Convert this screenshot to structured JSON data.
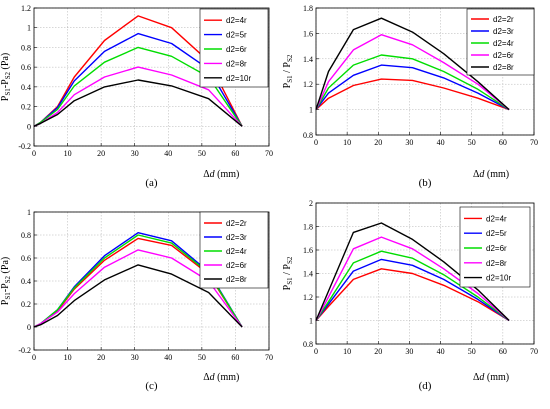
{
  "chart_data": [
    {
      "type": "line",
      "panel_label": "(a)",
      "xlabel_prefix": "Δ",
      "xlabel_var": "d",
      "xlabel_unit": " (mm)",
      "ylabel": "P",
      "ylabel_sub1": "S1",
      "ylabel_mid": "-P",
      "ylabel_sub2": "S2",
      "ylabel_unit": "  (Pa)",
      "xlim": [
        0,
        70
      ],
      "ylim": [
        -0.2,
        1.2
      ],
      "xticks": [
        "0",
        "10",
        "20",
        "30",
        "40",
        "50",
        "60",
        "70"
      ],
      "yticks": [
        "-0.2",
        "0",
        "0.2",
        "0.4",
        "0.6",
        "0.8",
        "1",
        "1.2"
      ],
      "grid": true,
      "legend_position": "top-right",
      "x": [
        0,
        2,
        7,
        12,
        21,
        31,
        41,
        52,
        62
      ],
      "series": [
        {
          "name": "d2=4r",
          "color": "#ff0000",
          "values": [
            0,
            0.04,
            0.2,
            0.5,
            0.87,
            1.12,
            1.0,
            0.66,
            0
          ]
        },
        {
          "name": "d2=5r",
          "color": "#0000ff",
          "values": [
            0,
            0.04,
            0.19,
            0.46,
            0.76,
            0.94,
            0.84,
            0.58,
            0
          ]
        },
        {
          "name": "d2=6r",
          "color": "#00dd00",
          "values": [
            0,
            0.04,
            0.17,
            0.41,
            0.65,
            0.8,
            0.71,
            0.5,
            0
          ]
        },
        {
          "name": "d2=8r",
          "color": "#ff00ff",
          "values": [
            0,
            0.03,
            0.14,
            0.32,
            0.5,
            0.6,
            0.52,
            0.37,
            0
          ]
        },
        {
          "name": "d2=10r",
          "color": "#000000",
          "values": [
            0,
            0.03,
            0.12,
            0.26,
            0.4,
            0.47,
            0.41,
            0.28,
            0
          ]
        }
      ]
    },
    {
      "type": "line",
      "panel_label": "(b)",
      "xlabel_prefix": "Δ",
      "xlabel_var": "d",
      "xlabel_unit": " (mm)",
      "ylabel": "P",
      "ylabel_sub1": "S1",
      "ylabel_mid": " / P",
      "ylabel_sub2": "S2",
      "ylabel_unit": "",
      "xlim": [
        0,
        70
      ],
      "ylim": [
        0.8,
        1.8
      ],
      "xticks": [
        "0",
        "10",
        "20",
        "30",
        "40",
        "50",
        "60",
        "70"
      ],
      "yticks": [
        "0.8",
        "1",
        "1.2",
        "1.4",
        "1.6",
        "1.8"
      ],
      "grid": true,
      "legend_position": "top-right",
      "x": [
        0,
        4,
        12,
        21,
        31,
        41,
        52,
        62
      ],
      "series": [
        {
          "name": "d2=2r",
          "color": "#ff0000",
          "values": [
            1.0,
            1.09,
            1.19,
            1.24,
            1.23,
            1.17,
            1.09,
            1.0
          ]
        },
        {
          "name": "d2=3r",
          "color": "#0000ff",
          "values": [
            1.0,
            1.13,
            1.27,
            1.35,
            1.33,
            1.25,
            1.13,
            1.0
          ]
        },
        {
          "name": "d2=4r",
          "color": "#00dd00",
          "values": [
            1.0,
            1.17,
            1.35,
            1.43,
            1.4,
            1.3,
            1.16,
            1.0
          ]
        },
        {
          "name": "d2=6r",
          "color": "#ff00ff",
          "values": [
            1.0,
            1.22,
            1.47,
            1.59,
            1.51,
            1.37,
            1.2,
            1.0
          ]
        },
        {
          "name": "d2=8r",
          "color": "#000000",
          "values": [
            1.0,
            1.3,
            1.63,
            1.72,
            1.61,
            1.44,
            1.22,
            1.0
          ]
        }
      ]
    },
    {
      "type": "line",
      "panel_label": "(c)",
      "xlabel_prefix": "Δ",
      "xlabel_var": "d",
      "xlabel_unit": " (mm)",
      "ylabel": "P",
      "ylabel_sub1": "S1",
      "ylabel_mid": "-P",
      "ylabel_sub2": "S2",
      "ylabel_unit": "  (Pa)",
      "xlim": [
        0,
        70
      ],
      "ylim": [
        -0.2,
        1.0
      ],
      "xticks": [
        "0",
        "10",
        "20",
        "30",
        "40",
        "50",
        "60",
        "70"
      ],
      "yticks": [
        "-0.2",
        "0",
        "0.2",
        "0.4",
        "0.6",
        "0.8",
        "1"
      ],
      "grid": true,
      "legend_position": "top-right",
      "x": [
        0,
        2,
        7,
        12,
        21,
        31,
        41,
        52,
        62
      ],
      "series": [
        {
          "name": "d2=2r",
          "color": "#ff0000",
          "values": [
            0,
            0.03,
            0.14,
            0.33,
            0.58,
            0.77,
            0.71,
            0.46,
            0
          ]
        },
        {
          "name": "d2=3r",
          "color": "#0000ff",
          "values": [
            0,
            0.03,
            0.15,
            0.35,
            0.62,
            0.82,
            0.75,
            0.48,
            0
          ]
        },
        {
          "name": "d2=4r",
          "color": "#00dd00",
          "values": [
            0,
            0.03,
            0.15,
            0.34,
            0.6,
            0.8,
            0.73,
            0.47,
            0
          ]
        },
        {
          "name": "d2=6r",
          "color": "#ff00ff",
          "values": [
            0,
            0.03,
            0.13,
            0.29,
            0.52,
            0.67,
            0.6,
            0.4,
            0
          ]
        },
        {
          "name": "d2=8r",
          "color": "#000000",
          "values": [
            0,
            0.02,
            0.1,
            0.23,
            0.41,
            0.54,
            0.46,
            0.3,
            0
          ]
        }
      ]
    },
    {
      "type": "line",
      "panel_label": "(d)",
      "xlabel_prefix": "Δ",
      "xlabel_var": "d",
      "xlabel_unit": " (mm)",
      "ylabel": "P",
      "ylabel_sub1": "S1",
      "ylabel_mid": " / P",
      "ylabel_sub2": "S2",
      "ylabel_unit": "",
      "xlim": [
        0,
        70
      ],
      "ylim": [
        0.8,
        2.0
      ],
      "xticks": [
        "0",
        "10",
        "20",
        "30",
        "40",
        "50",
        "60",
        "70"
      ],
      "yticks": [
        "0.8",
        "1",
        "1.2",
        "1.4",
        "1.6",
        "1.8",
        "2"
      ],
      "grid": true,
      "legend_position": "top-right",
      "x": [
        0,
        4,
        12,
        21,
        31,
        41,
        52,
        62
      ],
      "series": [
        {
          "name": "d2=4r",
          "color": "#ff0000",
          "values": [
            1.0,
            1.12,
            1.35,
            1.44,
            1.4,
            1.3,
            1.16,
            1.0
          ]
        },
        {
          "name": "d2=5r",
          "color": "#0000ff",
          "values": [
            1.0,
            1.14,
            1.42,
            1.52,
            1.47,
            1.35,
            1.18,
            1.0
          ]
        },
        {
          "name": "d2=6r",
          "color": "#00dd00",
          "values": [
            1.0,
            1.16,
            1.49,
            1.59,
            1.53,
            1.39,
            1.2,
            1.0
          ]
        },
        {
          "name": "d2=8r",
          "color": "#ff00ff",
          "values": [
            1.0,
            1.2,
            1.61,
            1.71,
            1.61,
            1.44,
            1.23,
            1.0
          ]
        },
        {
          "name": "d2=10r",
          "color": "#000000",
          "values": [
            1.0,
            1.25,
            1.75,
            1.83,
            1.69,
            1.5,
            1.26,
            1.0
          ]
        }
      ]
    }
  ]
}
